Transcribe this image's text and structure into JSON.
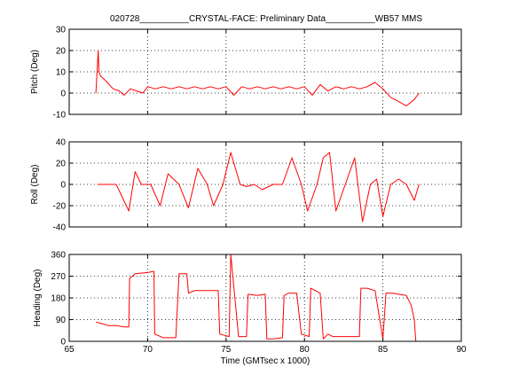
{
  "figure": {
    "title": "020728__________CRYSTAL-FACE: Preliminary Data__________WB57 MMS",
    "xlabel": "Time (GMTsec x 1000)",
    "trace_color": "#ff0000",
    "grid_color": "#000000"
  },
  "chart_data": [
    {
      "type": "line",
      "ylabel": "Pitch (Deg)",
      "xlim": [
        65,
        90
      ],
      "ylim": [
        -10,
        30
      ],
      "xticks": [
        65,
        70,
        75,
        80,
        85,
        90
      ],
      "yticks": [
        -10,
        0,
        10,
        20,
        30
      ],
      "grid": true,
      "series": [
        {
          "color": "#ff0000",
          "x": [
            66.7,
            66.85,
            66.9,
            67.0,
            67.3,
            67.8,
            68.2,
            68.5,
            68.9,
            69.3,
            69.7,
            70.0,
            70.5,
            71.0,
            71.5,
            72.0,
            72.5,
            73.0,
            73.5,
            74.0,
            74.5,
            75.0,
            75.5,
            76.0,
            76.5,
            77.0,
            77.5,
            78.0,
            78.5,
            79.0,
            79.5,
            80.0,
            80.5,
            81.0,
            81.5,
            82.0,
            82.5,
            83.0,
            83.5,
            84.0,
            84.5,
            85.0,
            85.5,
            86.0,
            86.5,
            87.0,
            87.3
          ],
          "y": [
            0,
            20,
            10,
            8,
            6,
            2,
            1,
            -1,
            2,
            1,
            0,
            3,
            2,
            3,
            2,
            3,
            2,
            3,
            2,
            3,
            2,
            3,
            -1,
            3,
            2,
            3,
            2,
            3,
            2,
            3,
            2,
            3,
            -1,
            4,
            1,
            3,
            2,
            3,
            2,
            3,
            5,
            2,
            -2,
            -4,
            -6,
            -3,
            0
          ]
        }
      ]
    },
    {
      "type": "line",
      "ylabel": "Roll (Deg)",
      "xlim": [
        65,
        90
      ],
      "ylim": [
        -40,
        40
      ],
      "xticks": [
        65,
        70,
        75,
        80,
        85,
        90
      ],
      "yticks": [
        -40,
        -20,
        0,
        20,
        40
      ],
      "grid": true,
      "series": [
        {
          "color": "#ff0000",
          "x": [
            66.8,
            67.5,
            68.0,
            68.8,
            69.2,
            69.6,
            70.2,
            70.8,
            71.3,
            72.0,
            72.6,
            73.2,
            73.8,
            74.2,
            74.8,
            75.3,
            75.6,
            75.9,
            76.3,
            76.8,
            77.3,
            78.0,
            78.6,
            79.2,
            79.8,
            80.2,
            80.8,
            81.2,
            81.6,
            82.0,
            82.6,
            83.2,
            83.7,
            84.2,
            84.6,
            85.0,
            85.5,
            86.0,
            86.5,
            87.0,
            87.3
          ],
          "y": [
            0,
            0,
            0,
            -25,
            12,
            0,
            0,
            -20,
            10,
            0,
            -22,
            15,
            0,
            -20,
            0,
            30,
            15,
            0,
            -2,
            0,
            -5,
            0,
            0,
            25,
            0,
            -25,
            0,
            25,
            30,
            -25,
            0,
            25,
            -35,
            0,
            5,
            -30,
            0,
            5,
            0,
            -15,
            0
          ]
        }
      ]
    },
    {
      "type": "line",
      "ylabel": "Heading (Deg)",
      "xlim": [
        65,
        90
      ],
      "ylim": [
        0,
        360
      ],
      "xticks": [
        65,
        70,
        75,
        80,
        85,
        90
      ],
      "yticks": [
        0,
        90,
        180,
        270,
        360
      ],
      "grid": true,
      "series": [
        {
          "color": "#ff0000",
          "x": [
            66.7,
            67.0,
            67.5,
            68.0,
            68.5,
            68.8,
            68.85,
            69.2,
            70.0,
            70.4,
            70.45,
            71.0,
            71.5,
            71.8,
            72.0,
            72.5,
            72.6,
            73.0,
            73.5,
            74.0,
            74.5,
            74.6,
            75.2,
            75.3,
            75.8,
            76.3,
            76.4,
            77.0,
            77.5,
            77.6,
            78.0,
            78.6,
            78.7,
            79.0,
            79.5,
            79.8,
            80.3,
            80.4,
            81.0,
            81.2,
            81.5,
            81.8,
            82.0,
            82.5,
            83.0,
            83.5,
            83.6,
            84.0,
            84.5,
            85.0,
            85.2,
            85.6,
            86.0,
            86.5,
            86.8,
            87.0,
            87.1
          ],
          "y": [
            80,
            75,
            65,
            65,
            60,
            60,
            260,
            280,
            285,
            290,
            30,
            15,
            15,
            15,
            280,
            280,
            200,
            210,
            210,
            210,
            210,
            30,
            20,
            360,
            20,
            20,
            195,
            190,
            195,
            10,
            10,
            15,
            190,
            200,
            200,
            30,
            20,
            220,
            200,
            10,
            30,
            20,
            20,
            20,
            20,
            20,
            220,
            220,
            210,
            10,
            200,
            200,
            195,
            190,
            150,
            90,
            0
          ]
        }
      ]
    }
  ]
}
